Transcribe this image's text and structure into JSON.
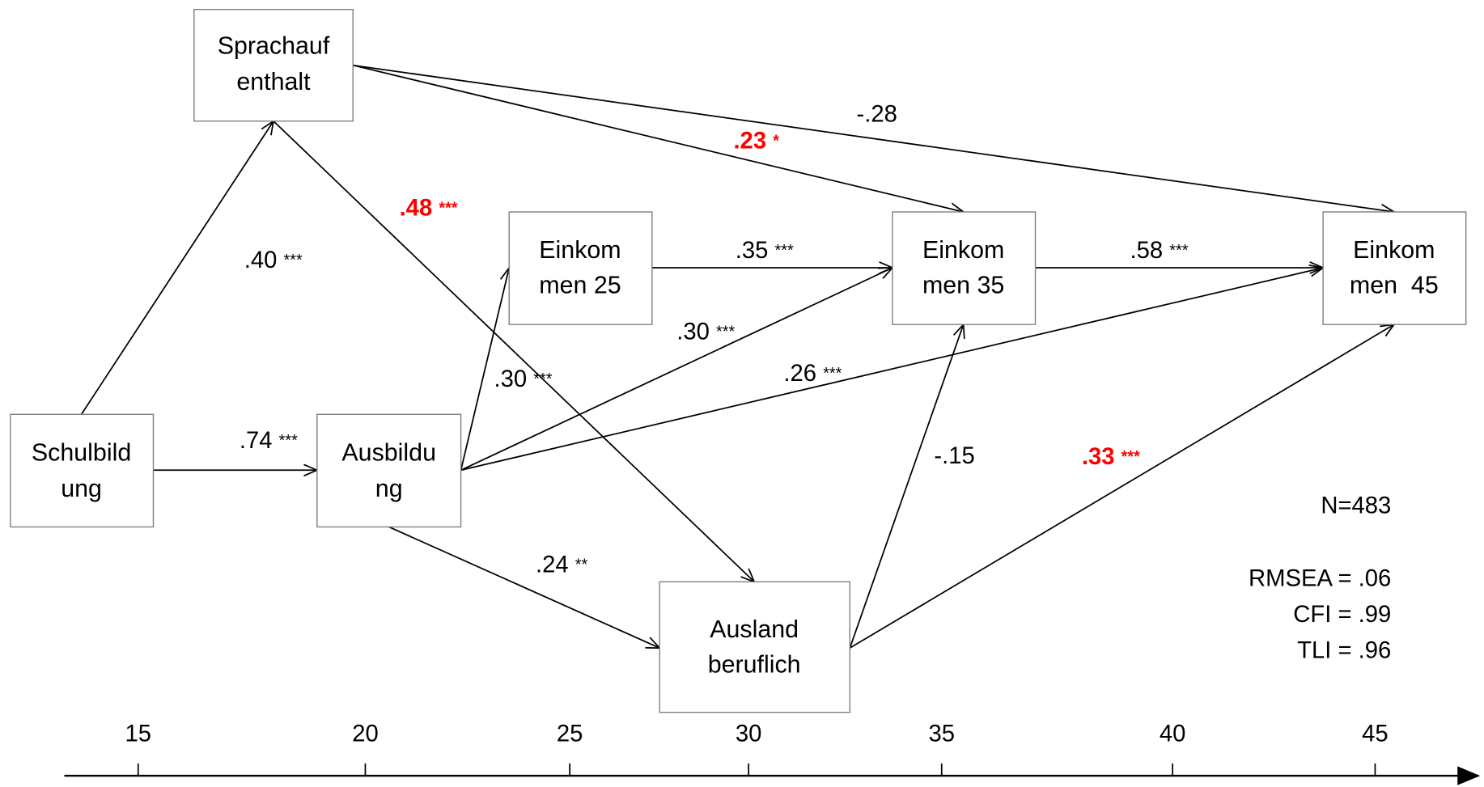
{
  "nodes": [
    {
      "label": [
        "Sprachauf",
        "enthalt"
      ]
    },
    {
      "label": [
        "Schulbild",
        "ung"
      ]
    },
    {
      "label": [
        "Ausbildu",
        "ng"
      ]
    },
    {
      "label": [
        "Einkom",
        "men 25"
      ]
    },
    {
      "label": [
        "Einkom",
        "men 35"
      ]
    },
    {
      "label": [
        "Einkom",
        "men  45"
      ]
    },
    {
      "label": [
        "Ausland",
        "beruflich"
      ]
    }
  ],
  "edges": [
    {
      "coefficient": ".40",
      "stars": "***"
    },
    {
      "coefficient": ".74",
      "stars": "***"
    },
    {
      "coefficient": ".48",
      "stars": "***"
    },
    {
      "coefficient": ".23",
      "stars": "*"
    },
    {
      "coefficient": "-.28",
      "stars": ""
    },
    {
      "coefficient": ".30",
      "stars": "***"
    },
    {
      "coefficient": ".30",
      "stars": "***"
    },
    {
      "coefficient": ".26",
      "stars": "***"
    },
    {
      "coefficient": ".24",
      "stars": "**"
    },
    {
      "coefficient": ".35",
      "stars": "***"
    },
    {
      "coefficient": ".58",
      "stars": "***"
    },
    {
      "coefficient": "-.15",
      "stars": ""
    },
    {
      "coefficient": ".33",
      "stars": "***"
    }
  ],
  "fit": {
    "n": "N=483",
    "rmsea": "RMSEA = .06",
    "cfi": "CFI = .99",
    "tli": "TLI = .96"
  },
  "axis": {
    "ticks": [
      15,
      20,
      25,
      30,
      35,
      40,
      45
    ]
  }
}
